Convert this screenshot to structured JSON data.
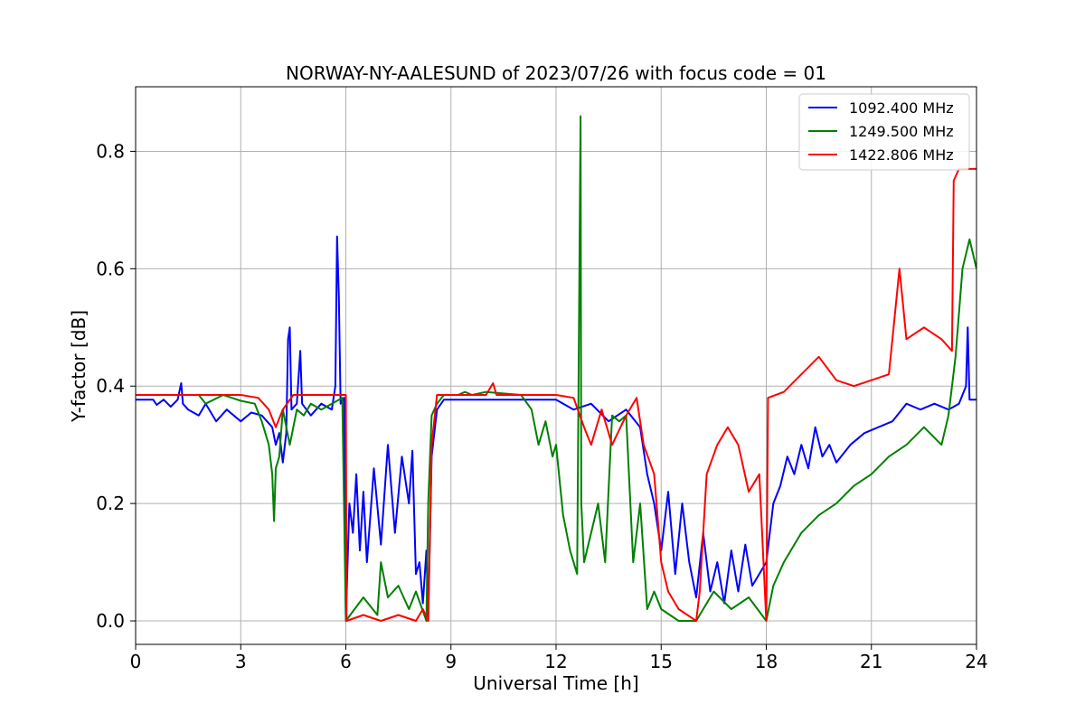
{
  "chart_data": {
    "type": "line",
    "title": "NORWAY-NY-AALESUND of 2023/07/26 with focus code = 01",
    "xlabel": "Universal Time [h]",
    "ylabel": "Y-factor [dB]",
    "xlim": [
      0,
      24
    ],
    "ylim": [
      -0.04,
      0.91
    ],
    "xticks": [
      0,
      3,
      6,
      9,
      12,
      15,
      18,
      21,
      24
    ],
    "xtick_labels": [
      "0",
      "3",
      "6",
      "9",
      "12",
      "15",
      "18",
      "21",
      "24"
    ],
    "yticks": [
      0.0,
      0.2,
      0.4,
      0.6,
      0.8
    ],
    "ytick_labels": [
      "0.0",
      "0.2",
      "0.4",
      "0.6",
      "0.8"
    ],
    "grid": true,
    "legend_position": "top-right",
    "series": [
      {
        "name": "1092.400 MHz",
        "color": "#0000ff",
        "points": [
          [
            0.0,
            0.377
          ],
          [
            0.5,
            0.377
          ],
          [
            0.6,
            0.368
          ],
          [
            0.8,
            0.377
          ],
          [
            1.0,
            0.365
          ],
          [
            1.2,
            0.377
          ],
          [
            1.3,
            0.405
          ],
          [
            1.35,
            0.37
          ],
          [
            1.5,
            0.36
          ],
          [
            1.8,
            0.35
          ],
          [
            2.0,
            0.37
          ],
          [
            2.3,
            0.34
          ],
          [
            2.6,
            0.36
          ],
          [
            3.0,
            0.34
          ],
          [
            3.3,
            0.355
          ],
          [
            3.6,
            0.35
          ],
          [
            3.9,
            0.33
          ],
          [
            4.0,
            0.3
          ],
          [
            4.1,
            0.32
          ],
          [
            4.2,
            0.27
          ],
          [
            4.3,
            0.32
          ],
          [
            4.35,
            0.48
          ],
          [
            4.4,
            0.5
          ],
          [
            4.45,
            0.36
          ],
          [
            4.6,
            0.37
          ],
          [
            4.7,
            0.46
          ],
          [
            4.75,
            0.37
          ],
          [
            5.0,
            0.35
          ],
          [
            5.3,
            0.37
          ],
          [
            5.6,
            0.36
          ],
          [
            5.7,
            0.4
          ],
          [
            5.75,
            0.655
          ],
          [
            5.8,
            0.55
          ],
          [
            5.85,
            0.37
          ],
          [
            5.95,
            0.38
          ],
          [
            6.0,
            0.0
          ],
          [
            6.1,
            0.2
          ],
          [
            6.2,
            0.15
          ],
          [
            6.3,
            0.25
          ],
          [
            6.4,
            0.12
          ],
          [
            6.5,
            0.22
          ],
          [
            6.6,
            0.1
          ],
          [
            6.8,
            0.26
          ],
          [
            7.0,
            0.13
          ],
          [
            7.2,
            0.3
          ],
          [
            7.4,
            0.15
          ],
          [
            7.6,
            0.28
          ],
          [
            7.8,
            0.2
          ],
          [
            7.9,
            0.29
          ],
          [
            8.0,
            0.08
          ],
          [
            8.1,
            0.1
          ],
          [
            8.2,
            0.03
          ],
          [
            8.3,
            0.12
          ],
          [
            8.35,
            0.0
          ],
          [
            8.45,
            0.28
          ],
          [
            8.6,
            0.36
          ],
          [
            8.8,
            0.377
          ],
          [
            9.0,
            0.377
          ],
          [
            10.0,
            0.377
          ],
          [
            11.0,
            0.377
          ],
          [
            12.0,
            0.377
          ],
          [
            12.5,
            0.36
          ],
          [
            13.0,
            0.37
          ],
          [
            13.5,
            0.34
          ],
          [
            14.0,
            0.36
          ],
          [
            14.4,
            0.33
          ],
          [
            14.6,
            0.25
          ],
          [
            14.8,
            0.2
          ],
          [
            15.0,
            0.12
          ],
          [
            15.2,
            0.22
          ],
          [
            15.4,
            0.08
          ],
          [
            15.6,
            0.2
          ],
          [
            15.8,
            0.1
          ],
          [
            16.0,
            0.04
          ],
          [
            16.2,
            0.15
          ],
          [
            16.4,
            0.05
          ],
          [
            16.6,
            0.1
          ],
          [
            16.8,
            0.03
          ],
          [
            17.0,
            0.12
          ],
          [
            17.2,
            0.05
          ],
          [
            17.4,
            0.13
          ],
          [
            17.6,
            0.06
          ],
          [
            17.8,
            0.08
          ],
          [
            18.0,
            0.1
          ],
          [
            18.2,
            0.2
          ],
          [
            18.4,
            0.23
          ],
          [
            18.6,
            0.28
          ],
          [
            18.8,
            0.25
          ],
          [
            19.0,
            0.3
          ],
          [
            19.2,
            0.26
          ],
          [
            19.4,
            0.33
          ],
          [
            19.6,
            0.28
          ],
          [
            19.8,
            0.3
          ],
          [
            20.0,
            0.27
          ],
          [
            20.4,
            0.3
          ],
          [
            20.8,
            0.32
          ],
          [
            21.2,
            0.33
          ],
          [
            21.6,
            0.34
          ],
          [
            22.0,
            0.37
          ],
          [
            22.4,
            0.36
          ],
          [
            22.8,
            0.37
          ],
          [
            23.2,
            0.36
          ],
          [
            23.5,
            0.37
          ],
          [
            23.7,
            0.4
          ],
          [
            23.75,
            0.5
          ],
          [
            23.8,
            0.377
          ],
          [
            24.0,
            0.377
          ]
        ]
      },
      {
        "name": "1249.500 MHz",
        "color": "#008000",
        "points": [
          [
            1.8,
            0.385
          ],
          [
            2.0,
            0.37
          ],
          [
            2.5,
            0.385
          ],
          [
            3.0,
            0.375
          ],
          [
            3.4,
            0.37
          ],
          [
            3.6,
            0.34
          ],
          [
            3.8,
            0.3
          ],
          [
            3.9,
            0.25
          ],
          [
            3.95,
            0.17
          ],
          [
            4.0,
            0.26
          ],
          [
            4.1,
            0.28
          ],
          [
            4.2,
            0.36
          ],
          [
            4.4,
            0.3
          ],
          [
            4.6,
            0.36
          ],
          [
            4.8,
            0.35
          ],
          [
            5.0,
            0.37
          ],
          [
            5.3,
            0.36
          ],
          [
            5.6,
            0.37
          ],
          [
            5.9,
            0.38
          ],
          [
            6.0,
            0.0
          ],
          [
            6.5,
            0.04
          ],
          [
            6.9,
            0.01
          ],
          [
            7.0,
            0.1
          ],
          [
            7.2,
            0.04
          ],
          [
            7.5,
            0.06
          ],
          [
            7.8,
            0.02
          ],
          [
            8.0,
            0.05
          ],
          [
            8.3,
            0.0
          ],
          [
            8.35,
            0.2
          ],
          [
            8.45,
            0.35
          ],
          [
            8.6,
            0.37
          ],
          [
            8.8,
            0.385
          ],
          [
            9.2,
            0.385
          ],
          [
            9.4,
            0.39
          ],
          [
            9.6,
            0.385
          ],
          [
            10.0,
            0.39
          ],
          [
            11.0,
            0.385
          ],
          [
            11.3,
            0.36
          ],
          [
            11.5,
            0.3
          ],
          [
            11.7,
            0.34
          ],
          [
            11.9,
            0.28
          ],
          [
            12.0,
            0.3
          ],
          [
            12.2,
            0.18
          ],
          [
            12.4,
            0.12
          ],
          [
            12.6,
            0.08
          ],
          [
            12.7,
            0.86
          ],
          [
            12.72,
            0.2
          ],
          [
            12.8,
            0.1
          ],
          [
            13.0,
            0.15
          ],
          [
            13.2,
            0.2
          ],
          [
            13.4,
            0.1
          ],
          [
            13.6,
            0.35
          ],
          [
            13.8,
            0.34
          ],
          [
            14.0,
            0.35
          ],
          [
            14.2,
            0.1
          ],
          [
            14.4,
            0.2
          ],
          [
            14.6,
            0.02
          ],
          [
            14.8,
            0.05
          ],
          [
            15.0,
            0.02
          ],
          [
            15.5,
            0.0
          ],
          [
            16.0,
            0.0
          ],
          [
            16.5,
            0.05
          ],
          [
            17.0,
            0.02
          ],
          [
            17.5,
            0.04
          ],
          [
            18.0,
            0.0
          ],
          [
            18.2,
            0.06
          ],
          [
            18.5,
            0.1
          ],
          [
            19.0,
            0.15
          ],
          [
            19.5,
            0.18
          ],
          [
            20.0,
            0.2
          ],
          [
            20.5,
            0.23
          ],
          [
            21.0,
            0.25
          ],
          [
            21.5,
            0.28
          ],
          [
            22.0,
            0.3
          ],
          [
            22.5,
            0.33
          ],
          [
            23.0,
            0.3
          ],
          [
            23.2,
            0.35
          ],
          [
            23.4,
            0.45
          ],
          [
            23.6,
            0.6
          ],
          [
            23.8,
            0.65
          ],
          [
            24.0,
            0.6
          ]
        ]
      },
      {
        "name": "1422.806 MHz",
        "color": "#ff0000",
        "points": [
          [
            0.0,
            0.385
          ],
          [
            1.0,
            0.385
          ],
          [
            2.0,
            0.385
          ],
          [
            3.0,
            0.385
          ],
          [
            3.5,
            0.38
          ],
          [
            3.8,
            0.36
          ],
          [
            4.0,
            0.33
          ],
          [
            4.2,
            0.36
          ],
          [
            4.5,
            0.385
          ],
          [
            5.0,
            0.385
          ],
          [
            6.0,
            0.385
          ],
          [
            6.02,
            0.0
          ],
          [
            6.5,
            0.01
          ],
          [
            7.0,
            0.0
          ],
          [
            7.5,
            0.01
          ],
          [
            8.0,
            0.0
          ],
          [
            8.2,
            0.02
          ],
          [
            8.35,
            0.0
          ],
          [
            8.45,
            0.3
          ],
          [
            8.6,
            0.385
          ],
          [
            9.0,
            0.385
          ],
          [
            10.0,
            0.385
          ],
          [
            10.2,
            0.405
          ],
          [
            10.3,
            0.385
          ],
          [
            11.0,
            0.385
          ],
          [
            12.0,
            0.385
          ],
          [
            12.5,
            0.38
          ],
          [
            12.8,
            0.33
          ],
          [
            13.0,
            0.3
          ],
          [
            13.3,
            0.36
          ],
          [
            13.6,
            0.3
          ],
          [
            14.0,
            0.35
          ],
          [
            14.3,
            0.38
          ],
          [
            14.5,
            0.3
          ],
          [
            14.8,
            0.25
          ],
          [
            15.0,
            0.1
          ],
          [
            15.2,
            0.05
          ],
          [
            15.5,
            0.02
          ],
          [
            16.0,
            0.0
          ],
          [
            16.1,
            0.05
          ],
          [
            16.3,
            0.25
          ],
          [
            16.6,
            0.3
          ],
          [
            16.9,
            0.33
          ],
          [
            17.2,
            0.3
          ],
          [
            17.5,
            0.22
          ],
          [
            17.8,
            0.25
          ],
          [
            18.0,
            0.0
          ],
          [
            18.05,
            0.38
          ],
          [
            18.5,
            0.39
          ],
          [
            19.0,
            0.42
          ],
          [
            19.5,
            0.45
          ],
          [
            20.0,
            0.41
          ],
          [
            20.5,
            0.4
          ],
          [
            21.0,
            0.41
          ],
          [
            21.5,
            0.42
          ],
          [
            21.8,
            0.6
          ],
          [
            22.0,
            0.48
          ],
          [
            22.5,
            0.5
          ],
          [
            23.0,
            0.48
          ],
          [
            23.3,
            0.46
          ],
          [
            23.35,
            0.75
          ],
          [
            23.5,
            0.77
          ],
          [
            24.0,
            0.77
          ]
        ]
      }
    ]
  }
}
